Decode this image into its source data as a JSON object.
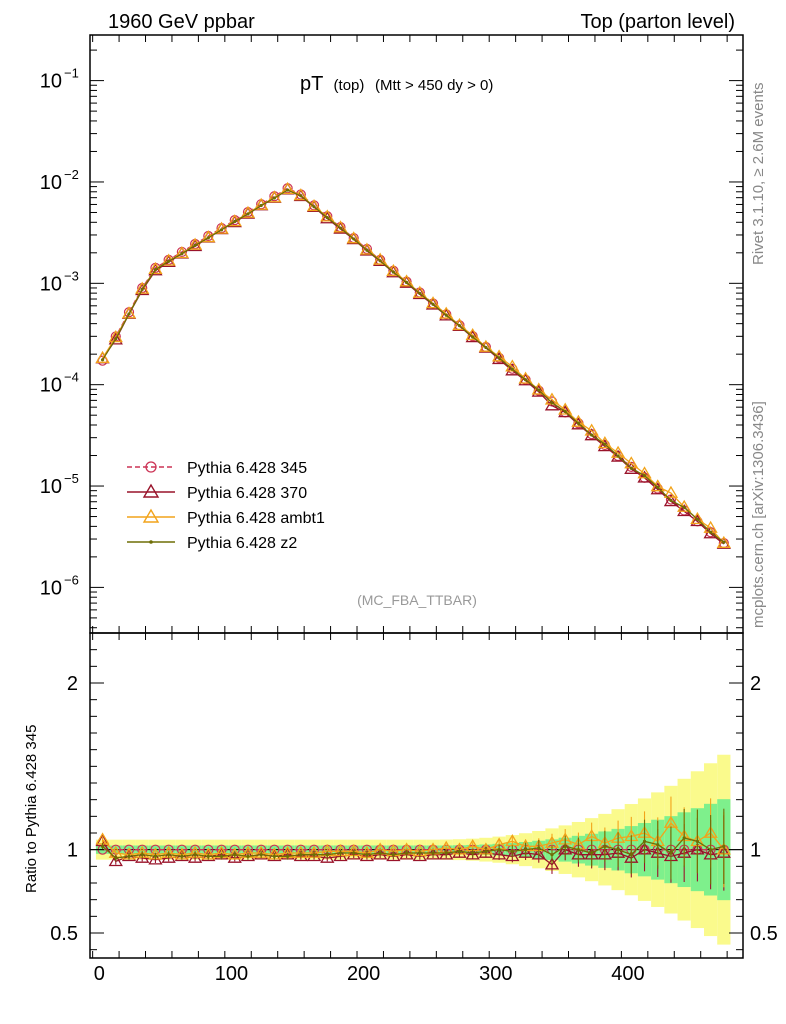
{
  "header": {
    "left": "1960 GeV ppbar",
    "right": "Top (parton level)"
  },
  "plot_title": {
    "main": "pT",
    "sub1": "(top)",
    "sub2": "(Mtt > 450 dy > 0)"
  },
  "analysis_label": "(MC_FBA_TTBAR)",
  "side_label_top": "Rivet 3.1.10, ≥ 2.6M events",
  "side_label_bottom": "mcplots.cern.ch [arXiv:1306.3436]",
  "ratio_ylabel": "Ratio to Pythia 6.428 345",
  "legend": [
    {
      "name": "Pythia 6.428 345",
      "color": "#cc3355",
      "marker": "circle",
      "dashed": true
    },
    {
      "name": "Pythia 6.428 370",
      "color": "#99132a",
      "marker": "triangle",
      "dashed": false
    },
    {
      "name": "Pythia 6.428 ambt1",
      "color": "#f2a31a",
      "marker": "triangle",
      "dashed": false
    },
    {
      "name": "Pythia 6.428 z2",
      "color": "#6e6e06",
      "marker": "dot",
      "dashed": false
    }
  ],
  "chart_data": {
    "type": "line",
    "xlim": [
      -7,
      487
    ],
    "main_ylim_log10": [
      -6.45,
      -0.55
    ],
    "main_yscale": "log",
    "main_yticks": [
      {
        "exp": -1,
        "label": "10",
        "sup": "−1"
      },
      {
        "exp": -2,
        "label": "10",
        "sup": "−2"
      },
      {
        "exp": -3,
        "label": "10",
        "sup": "−3"
      },
      {
        "exp": -4,
        "label": "10",
        "sup": "−4"
      },
      {
        "exp": -5,
        "label": "10",
        "sup": "−5"
      },
      {
        "exp": -6,
        "label": "10",
        "sup": "−6"
      }
    ],
    "ratio_ylim": [
      0.35,
      2.3
    ],
    "ratio_yticks": [
      {
        "value": 0.5,
        "label": "0.5"
      },
      {
        "value": 1,
        "label": "1"
      },
      {
        "value": 2,
        "label": "2"
      }
    ],
    "xticks": [
      {
        "value": 0,
        "label": "0"
      },
      {
        "value": 100,
        "label": "100"
      },
      {
        "value": 200,
        "label": "200"
      },
      {
        "value": 300,
        "label": "300"
      },
      {
        "value": 400,
        "label": "400"
      }
    ],
    "peak": {
      "x": 145,
      "y": 0.0088
    },
    "series": [
      {
        "name": "Pythia 6.428 345",
        "scale": 1.03,
        "ratio": [
          1.0,
          1.0,
          1.0,
          1.0,
          1.0,
          1.0,
          1.0,
          1.0,
          1.0,
          1.0,
          1.0,
          1.0,
          1.0,
          1.0,
          1.0,
          1.0,
          1.0,
          1.0,
          1.0,
          1.0,
          1.0,
          1.0,
          1.0,
          1.0,
          1.0,
          1.0,
          1.0,
          1.0,
          1.0,
          1.0,
          1.0,
          1.0,
          1.0,
          1.0,
          1.0,
          1.0,
          1.0,
          1.0,
          1.0,
          1.0,
          1.0,
          1.0,
          1.0,
          1.0,
          1.0,
          1.0,
          1.0,
          1.0
        ]
      },
      {
        "name": "Pythia 6.428 370",
        "scale": 0.95,
        "ratio": [
          1.05,
          0.93,
          0.96,
          0.95,
          0.94,
          0.95,
          0.96,
          0.95,
          0.96,
          0.97,
          0.95,
          0.96,
          0.97,
          0.96,
          0.97,
          0.96,
          0.96,
          0.95,
          0.96,
          0.97,
          0.96,
          0.97,
          0.96,
          0.97,
          0.96,
          0.97,
          0.97,
          0.98,
          0.97,
          0.98,
          0.97,
          0.96,
          0.98,
          0.97,
          0.91,
          1.0,
          0.97,
          0.97,
          0.97,
          0.98,
          0.95,
          1.0,
          0.98,
          0.96,
          0.98,
          1.0,
          0.97,
          0.98
        ]
      },
      {
        "name": "Pythia 6.428 ambt1",
        "scale": 1.0,
        "ratio": [
          1.06,
          0.98,
          0.97,
          0.98,
          0.97,
          0.98,
          0.97,
          0.98,
          0.97,
          0.98,
          0.97,
          0.98,
          0.98,
          0.97,
          0.98,
          0.98,
          0.98,
          0.99,
          0.99,
          0.99,
          0.98,
          1.0,
          0.99,
          1.0,
          0.99,
          1.0,
          1.01,
          1.0,
          1.02,
          1.0,
          1.03,
          1.05,
          1.02,
          1.02,
          1.04,
          1.06,
          1.03,
          1.08,
          1.04,
          1.07,
          1.08,
          1.1,
          1.05,
          1.16,
          1.08,
          1.05,
          1.1,
          1.0
        ]
      },
      {
        "name": "Pythia 6.428 z2",
        "scale": 0.97,
        "ratio": [
          1.02,
          0.95,
          0.96,
          0.97,
          0.96,
          0.97,
          0.96,
          0.97,
          0.96,
          0.96,
          0.97,
          0.96,
          0.97,
          0.96,
          0.96,
          0.97,
          0.97,
          0.97,
          0.98,
          0.98,
          0.97,
          0.98,
          0.97,
          0.98,
          0.98,
          0.98,
          0.98,
          0.99,
          0.98,
          0.99,
          1.0,
          0.99,
          1.0,
          1.01,
          0.97,
          1.02,
          1.0,
          0.98,
          1.02,
          1.0,
          0.97,
          1.05,
          1.03,
          0.98,
          1.07,
          1.05,
          1.0,
          1.02
        ]
      }
    ]
  }
}
